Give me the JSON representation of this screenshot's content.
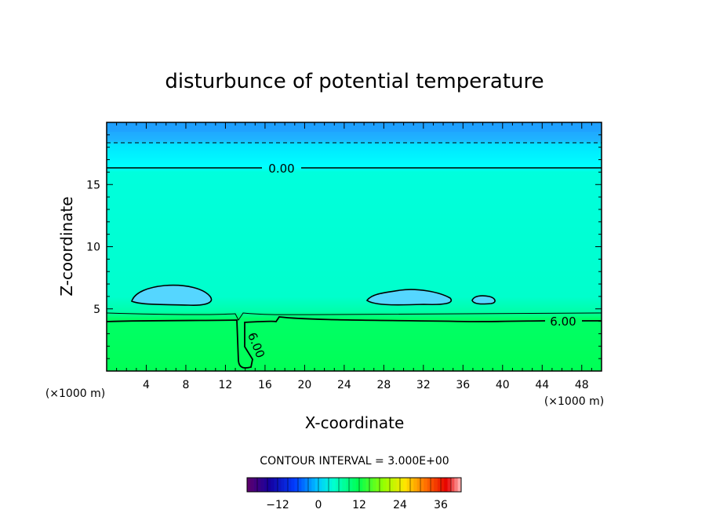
{
  "chart_data": {
    "type": "heatmap",
    "title": "disturbunce of potential temperature",
    "xlabel": "X-coordinate",
    "ylabel": "Z-coordinate",
    "x_unit_left": "(×1000 m)",
    "x_unit_right": "(×1000 m)",
    "xlim": [
      0,
      50
    ],
    "ylim": [
      0,
      20
    ],
    "x_ticks": [
      4,
      8,
      12,
      16,
      20,
      24,
      28,
      32,
      36,
      40,
      44,
      48
    ],
    "y_ticks": [
      5,
      10,
      15
    ],
    "contour_interval_text": "CONTOUR INTERVAL = 3.000E+00",
    "contour_labels": [
      "0.00",
      "6.00",
      "6.00"
    ],
    "colorbar": {
      "range": [
        -21,
        42
      ],
      "ticks": [
        -12,
        0,
        12,
        24,
        36
      ]
    },
    "colors": {
      "upper_band": "#1fa0ff",
      "cyan_band": "#00ffff",
      "mid_field": "#00ffcc",
      "low_field": "#00ff55",
      "blob": "#40ccff"
    }
  }
}
